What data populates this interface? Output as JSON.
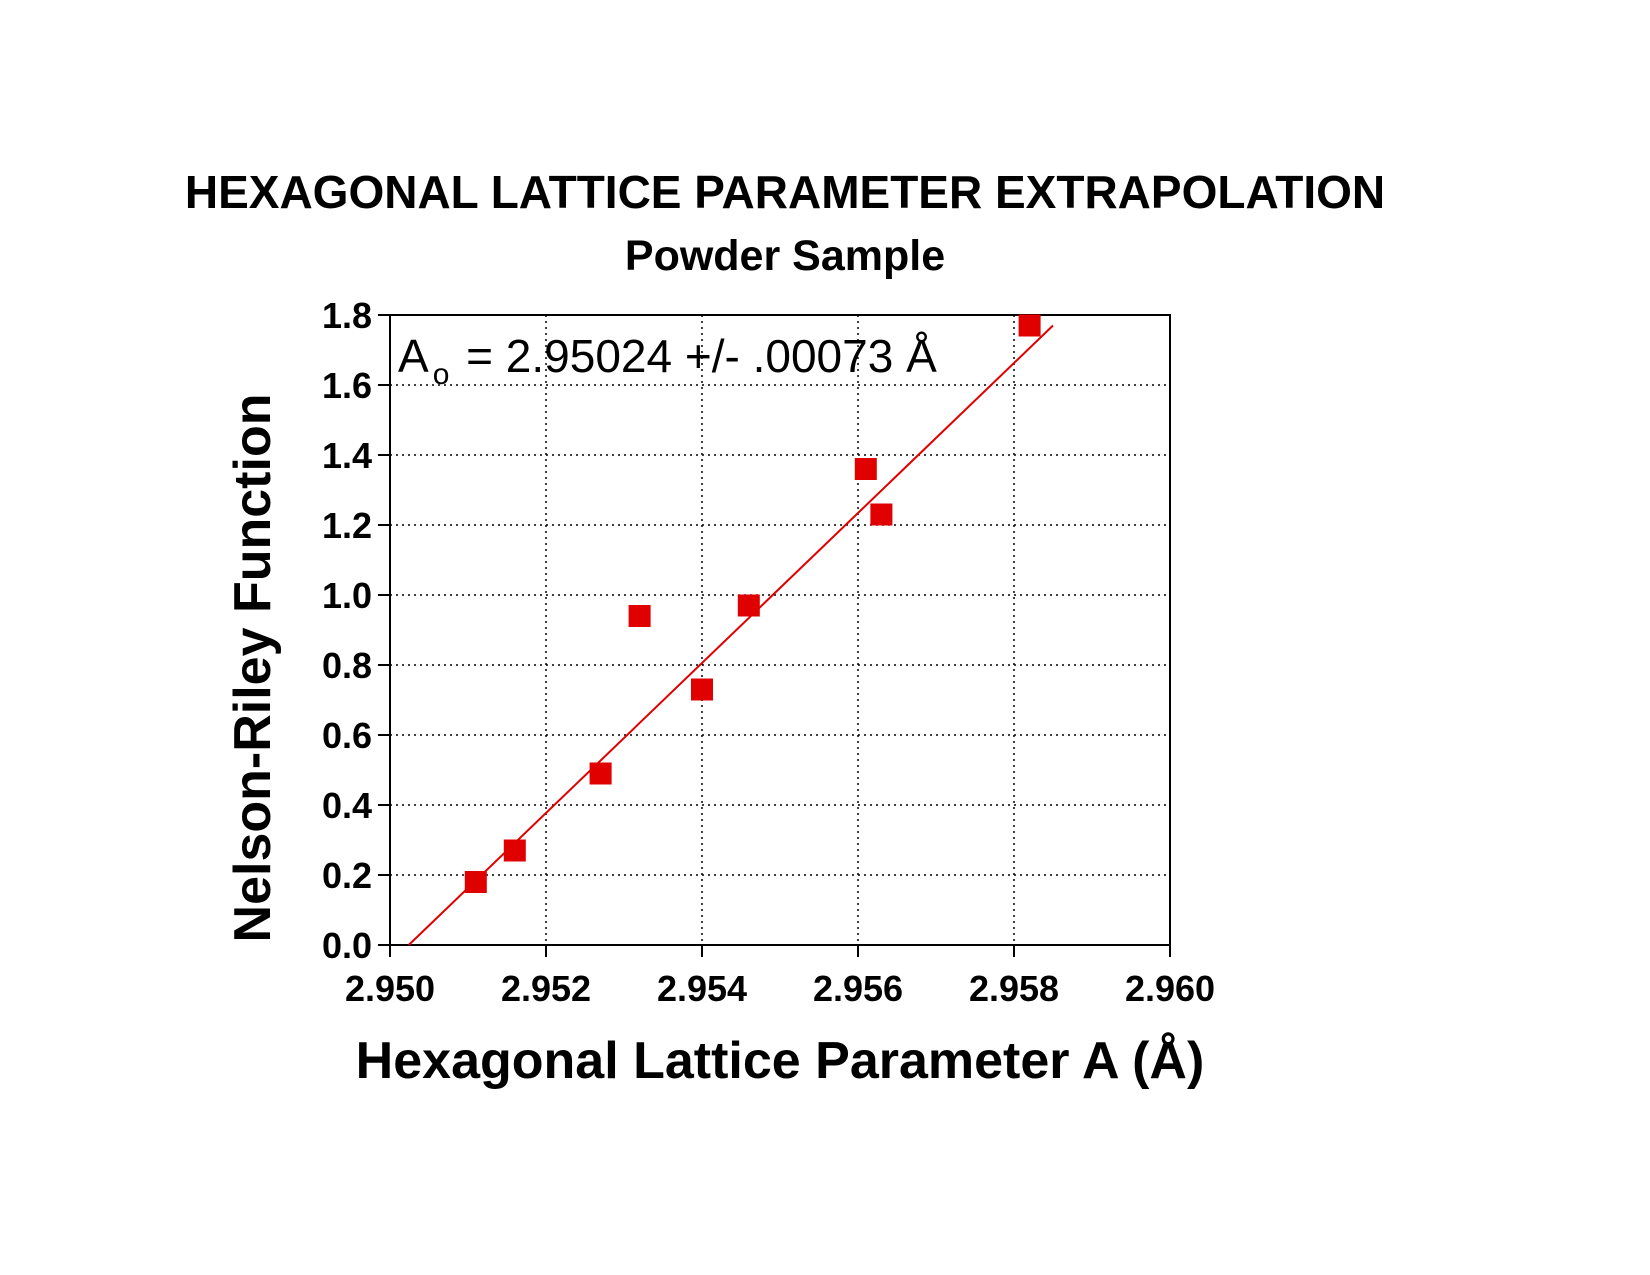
{
  "chart_data": {
    "type": "scatter",
    "title": "HEXAGONAL LATTICE PARAMETER EXTRAPOLATION",
    "subtitle": "Powder Sample",
    "xlabel": "Hexagonal Lattice Parameter A (Å)",
    "ylabel": "Nelson-Riley Function",
    "xlim": [
      2.95,
      2.96
    ],
    "ylim": [
      0.0,
      1.8
    ],
    "xticks": [
      "2.950",
      "2.952",
      "2.954",
      "2.956",
      "2.958",
      "2.960"
    ],
    "yticks": [
      "0.0",
      "0.2",
      "0.4",
      "0.6",
      "0.8",
      "1.0",
      "1.2",
      "1.4",
      "1.6",
      "1.8"
    ],
    "grid": true,
    "annotation": {
      "main": "A",
      "subscript": "o",
      "rest": " = 2.95024 +/- .00073 Å"
    },
    "series": [
      {
        "marker": "square",
        "color": "#e00000",
        "x": [
          2.9511,
          2.9516,
          2.9527,
          2.9532,
          2.954,
          2.9546,
          2.9561,
          2.9563,
          2.9582
        ],
        "y": [
          0.18,
          0.27,
          0.49,
          0.94,
          0.73,
          0.97,
          1.36,
          1.23,
          1.77
        ]
      }
    ],
    "fit_line": {
      "color": "#e00000",
      "x": [
        2.95024,
        2.9585
      ],
      "y": [
        0.0,
        1.77
      ]
    }
  }
}
